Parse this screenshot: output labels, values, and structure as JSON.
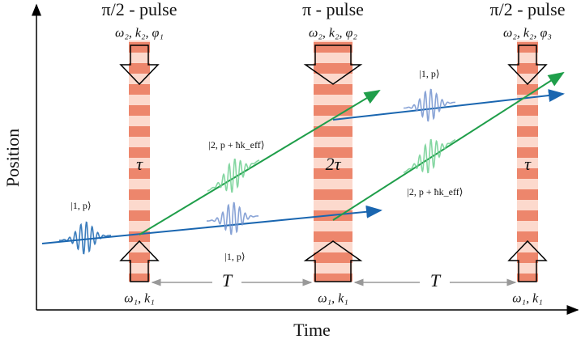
{
  "axes": {
    "y_label": "Position",
    "x_label": "Time"
  },
  "pulses": [
    {
      "title": "π/2 - pulse",
      "top_label": "ω₂, k₂, φ₁",
      "bottom_label": "ω₁, k₁",
      "duration": "τ"
    },
    {
      "title": "π - pulse",
      "top_label": "ω₂, k₂, φ₂",
      "bottom_label": "ω₁, k₁",
      "duration": "2τ"
    },
    {
      "title": "π/2 - pulse",
      "top_label": "ω₂, k₂, φ₃",
      "bottom_label": "ω₁, k₁",
      "duration": "τ"
    }
  ],
  "intervals": [
    "T",
    "T"
  ],
  "states": [
    "|1, p⟩",
    "|2, p + ħk_eff⟩",
    "|1, p⟩",
    "|1, p⟩",
    "|2, p + ħk_eff⟩"
  ]
}
